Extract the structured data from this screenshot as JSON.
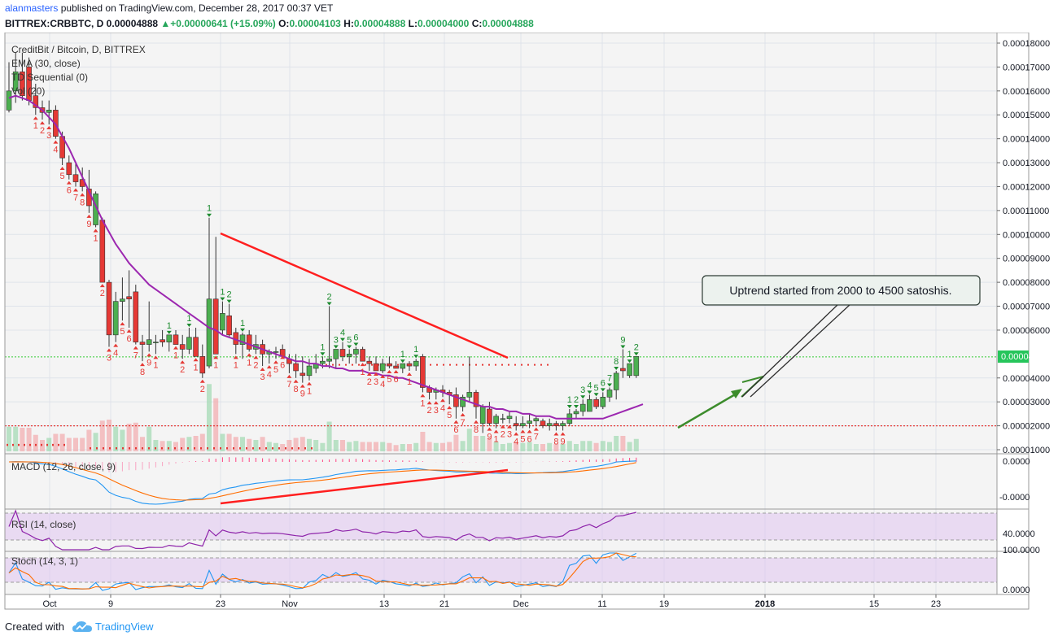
{
  "header": {
    "author": "alanmasters",
    "published_text": "published on TradingView.com, December 28, 2017 00:37 VET",
    "symbol": "BITTREX:CRBBTC, D",
    "last_price": "0.00004888",
    "change": "▲+0.00000641 (+15.09%)",
    "open_label": "O:",
    "open_value": "0.00004103",
    "high_label": "H:",
    "high_value": "0.00004888",
    "low_label": "L:",
    "low_value": "0.00004000",
    "close_label": "C:",
    "close_value": "0.00004888"
  },
  "legend": {
    "title": "CreditBit / Bitcoin, D, BITTREX",
    "ema": "EMA (30, close)",
    "td": "TD Sequential (0)",
    "vol": "Vol (20)"
  },
  "annotation": {
    "callout": "Uptrend started from 2000 to 4500 satoshis."
  },
  "price_axis": {
    "ticks": [
      "0.00018000",
      "0.00017000",
      "0.00016000",
      "0.00015000",
      "0.00014000",
      "0.00013000",
      "0.00012000",
      "0.00011000",
      "0.00010000",
      "0.00009000",
      "0.00008000",
      "0.00007000",
      "0.00006000",
      "0.00004888",
      "0.00004000",
      "0.00003000",
      "0.00002000",
      "0.00001000"
    ],
    "last_badge": "0.00004888"
  },
  "time_axis": {
    "labels": [
      "Oct",
      "9",
      "23",
      "Nov",
      "13",
      "21",
      "Dec",
      "11",
      "19",
      "2018",
      "15",
      "23"
    ]
  },
  "panels": {
    "macd_title": "MACD (12, 26, close, 9)",
    "macd_ticks": [
      "0.0000",
      "-0.0000"
    ],
    "rsi_title": "RSI (14, close)",
    "rsi_ticks": [
      "40.0000"
    ],
    "stoch_title": "Stoch (14, 3, 1)",
    "stoch_ticks": [
      "100.0000",
      "0.0000"
    ]
  },
  "footer": {
    "created_with": "Created with",
    "brand": "TradingView"
  },
  "colors": {
    "up": "#4caf50",
    "down": "#e53935",
    "ema": "#9c27b0",
    "trendline_red": "#ff1f1f",
    "arrow_green": "#3c8c2c",
    "last_price_badge": "#26c55b",
    "rsi_band": "#e1c8f0",
    "macd_blue": "#2196f3",
    "macd_orange": "#ff6d00"
  },
  "chart_data": {
    "type": "candlestick",
    "title": "CreditBit / Bitcoin, D, BITTREX",
    "x_labels": [
      "Oct",
      "9",
      "23",
      "Nov",
      "13",
      "21",
      "Dec",
      "11",
      "19",
      "2018",
      "15",
      "23"
    ],
    "ylim": [
      1e-05,
      0.00018
    ],
    "candles": [
      {
        "o": 0.000152,
        "h": 0.000172,
        "l": 0.000151,
        "c": 0.00016
      },
      {
        "o": 0.00016,
        "h": 0.000176,
        "l": 0.000155,
        "c": 0.000168
      },
      {
        "o": 0.000168,
        "h": 0.000176,
        "l": 0.000156,
        "c": 0.000158
      },
      {
        "o": 0.00017,
        "h": 0.000174,
        "l": 0.000154,
        "c": 0.000156
      },
      {
        "o": 0.000158,
        "h": 0.000163,
        "l": 0.00015,
        "c": 0.000153
      },
      {
        "o": 0.000153,
        "h": 0.000156,
        "l": 0.000148,
        "c": 0.000151
      },
      {
        "o": 0.000151,
        "h": 0.000156,
        "l": 0.000146,
        "c": 0.000152
      },
      {
        "o": 0.000152,
        "h": 0.000154,
        "l": 0.00014,
        "c": 0.000141
      },
      {
        "o": 0.000141,
        "h": 0.000143,
        "l": 0.000129,
        "c": 0.000132
      },
      {
        "o": 0.00013,
        "h": 0.000133,
        "l": 0.000123,
        "c": 0.000125
      },
      {
        "o": 0.000125,
        "h": 0.00013,
        "l": 0.00012,
        "c": 0.000122
      },
      {
        "o": 0.000123,
        "h": 0.000128,
        "l": 0.000118,
        "c": 0.00012
      },
      {
        "o": 0.000119,
        "h": 0.000127,
        "l": 0.000109,
        "c": 0.000112
      },
      {
        "o": 0.000104,
        "h": 0.000118,
        "l": 0.000103,
        "c": 0.000117
      },
      {
        "o": 0.000106,
        "h": 0.000107,
        "l": 8e-05,
        "c": 8e-05
      },
      {
        "o": 8e-05,
        "h": 8.1e-05,
        "l": 5.3e-05,
        "c": 5.8e-05
      },
      {
        "o": 5.8e-05,
        "h": 7.6e-05,
        "l": 5.5e-05,
        "c": 7.2e-05
      },
      {
        "o": 7.2e-05,
        "h": 8.2e-05,
        "l": 6.4e-05,
        "c": 7.3e-05
      },
      {
        "o": 7.4e-05,
        "h": 8.5e-05,
        "l": 6.1e-05,
        "c": 7.3e-05
      },
      {
        "o": 7.6e-05,
        "h": 7.9e-05,
        "l": 5.4e-05,
        "c": 5.5e-05
      },
      {
        "o": 5.5e-05,
        "h": 5.8e-05,
        "l": 4.7e-05,
        "c": 5.4e-05
      },
      {
        "o": 5.4e-05,
        "h": 7.2e-05,
        "l": 5.1e-05,
        "c": 5.6e-05
      },
      {
        "o": 5.5e-05,
        "h": 5.8e-05,
        "l": 5e-05,
        "c": 5.5e-05
      },
      {
        "o": 5.6e-05,
        "h": 6e-05,
        "l": 5.3e-05,
        "c": 5.5e-05
      },
      {
        "o": 5.5e-05,
        "h": 5.8e-05,
        "l": 5.1e-05,
        "c": 5.8e-05
      },
      {
        "o": 5.8e-05,
        "h": 6e-05,
        "l": 5.4e-05,
        "c": 5.4e-05
      },
      {
        "o": 5.4e-05,
        "h": 5.8e-05,
        "l": 4.8e-05,
        "c": 5.2e-05
      },
      {
        "o": 5.2e-05,
        "h": 6.1e-05,
        "l": 5e-05,
        "c": 5.7e-05
      },
      {
        "o": 5.7e-05,
        "h": 6.1e-05,
        "l": 4.9e-05,
        "c": 4.9e-05
      },
      {
        "o": 4.9e-05,
        "h": 5.4e-05,
        "l": 4e-05,
        "c": 4.2e-05
      },
      {
        "o": 4.5e-05,
        "h": 0.000107,
        "l": 4.4e-05,
        "c": 7.3e-05
      },
      {
        "o": 7.3e-05,
        "h": 9.9e-05,
        "l": 5e-05,
        "c": 5e-05
      },
      {
        "o": 6e-05,
        "h": 7.2e-05,
        "l": 5.8e-05,
        "c": 6.7e-05
      },
      {
        "o": 6.6e-05,
        "h": 7.1e-05,
        "l": 5.7e-05,
        "c": 5.8e-05
      },
      {
        "o": 5.9e-05,
        "h": 6.1e-05,
        "l": 5e-05,
        "c": 5.4e-05
      },
      {
        "o": 5.4e-05,
        "h": 5.9e-05,
        "l": 4.8e-05,
        "c": 5.8e-05
      },
      {
        "o": 5.8e-05,
        "h": 6e-05,
        "l": 5.1e-05,
        "c": 5.2e-05
      },
      {
        "o": 5.2e-05,
        "h": 5.8e-05,
        "l": 5e-05,
        "c": 5.4e-05
      },
      {
        "o": 5.4e-05,
        "h": 5.6e-05,
        "l": 4.5e-05,
        "c": 5e-05
      },
      {
        "o": 5e-05,
        "h": 5.2e-05,
        "l": 4.6e-05,
        "c": 5.1e-05
      },
      {
        "o": 5.1e-05,
        "h": 5.3e-05,
        "l": 4.8e-05,
        "c": 5.1e-05
      },
      {
        "o": 5.2e-05,
        "h": 5.4e-05,
        "l": 5e-05,
        "c": 4.9e-05
      },
      {
        "o": 4.8e-05,
        "h": 5e-05,
        "l": 4.2e-05,
        "c": 4.6e-05
      },
      {
        "o": 4.6e-05,
        "h": 5e-05,
        "l": 4e-05,
        "c": 4.3e-05
      },
      {
        "o": 4.2e-05,
        "h": 4.9e-05,
        "l": 3.8e-05,
        "c": 4.1e-05
      },
      {
        "o": 4.1e-05,
        "h": 4.8e-05,
        "l": 3.9e-05,
        "c": 4.5e-05
      },
      {
        "o": 4.4e-05,
        "h": 5e-05,
        "l": 4.2e-05,
        "c": 4.6e-05
      },
      {
        "o": 4.6e-05,
        "h": 4.9e-05,
        "l": 4.4e-05,
        "c": 4.7e-05
      },
      {
        "o": 4.7e-05,
        "h": 7e-05,
        "l": 4.4e-05,
        "c": 4.8e-05
      },
      {
        "o": 4.8e-05,
        "h": 5.2e-05,
        "l": 4.4e-05,
        "c": 5.2e-05
      },
      {
        "o": 5.2e-05,
        "h": 5.5e-05,
        "l": 4.7e-05,
        "c": 4.9e-05
      },
      {
        "o": 4.9e-05,
        "h": 5.2e-05,
        "l": 4.6e-05,
        "c": 5e-05
      },
      {
        "o": 5e-05,
        "h": 5.3e-05,
        "l": 4.6e-05,
        "c": 5.2e-05
      },
      {
        "o": 5.2e-05,
        "h": 5.3e-05,
        "l": 4.7e-05,
        "c": 4.7e-05
      },
      {
        "o": 4.7e-05,
        "h": 4.9e-05,
        "l": 4.3e-05,
        "c": 4.6e-05
      },
      {
        "o": 4.6e-05,
        "h": 4.9e-05,
        "l": 4.3e-05,
        "c": 4.3e-05
      },
      {
        "o": 4.3e-05,
        "h": 4.8e-05,
        "l": 4.2e-05,
        "c": 4.6e-05
      },
      {
        "o": 4.6e-05,
        "h": 4.9e-05,
        "l": 4.4e-05,
        "c": 4.5e-05
      },
      {
        "o": 4.5e-05,
        "h": 4.7e-05,
        "l": 4.4e-05,
        "c": 4.4e-05
      },
      {
        "o": 4.4e-05,
        "h": 4.6e-05,
        "l": 4.2e-05,
        "c": 4.6e-05
      },
      {
        "o": 4.6e-05,
        "h": 4.7e-05,
        "l": 4.3e-05,
        "c": 4.5e-05
      },
      {
        "o": 4.5e-05,
        "h": 4.8e-05,
        "l": 4.3e-05,
        "c": 4.7e-05
      },
      {
        "o": 4.9e-05,
        "h": 5e-05,
        "l": 3.4e-05,
        "c": 3.6e-05
      },
      {
        "o": 3.6e-05,
        "h": 3.7e-05,
        "l": 3.1e-05,
        "c": 3.4e-05
      },
      {
        "o": 3.4e-05,
        "h": 3.6e-05,
        "l": 3.1e-05,
        "c": 3.5e-05
      },
      {
        "o": 3.5e-05,
        "h": 3.7e-05,
        "l": 3.2e-05,
        "c": 3.4e-05
      },
      {
        "o": 3.4e-05,
        "h": 3.5e-05,
        "l": 2.9e-05,
        "c": 3.3e-05
      },
      {
        "o": 3.3e-05,
        "h": 3.6e-05,
        "l": 2.3e-05,
        "c": 2.8e-05
      },
      {
        "o": 2.8e-05,
        "h": 3.3e-05,
        "l": 2.6e-05,
        "c": 3.2e-05
      },
      {
        "o": 3.2e-05,
        "h": 4.9e-05,
        "l": 3e-05,
        "c": 3.4e-05
      },
      {
        "o": 3.4e-05,
        "h": 3.5e-05,
        "l": 2.3e-05,
        "c": 2.8e-05
      },
      {
        "o": 2.1e-05,
        "h": 2.9e-05,
        "l": 1.7e-05,
        "c": 2.8e-05
      },
      {
        "o": 2.7e-05,
        "h": 3e-05,
        "l": 2e-05,
        "c": 2.1e-05
      },
      {
        "o": 2.1e-05,
        "h": 2.5e-05,
        "l": 1.9e-05,
        "c": 2.4e-05
      },
      {
        "o": 2.3e-05,
        "h": 2.5e-05,
        "l": 2.1e-05,
        "c": 2.3e-05
      },
      {
        "o": 2.3e-05,
        "h": 2.6e-05,
        "l": 2.1e-05,
        "c": 2.4e-05
      },
      {
        "o": 2.1e-05,
        "h": 2.4e-05,
        "l": 1.8e-05,
        "c": 2e-05
      },
      {
        "o": 2e-05,
        "h": 2.4e-05,
        "l": 1.9e-05,
        "c": 2.1e-05
      },
      {
        "o": 2.1e-05,
        "h": 2.5e-05,
        "l": 1.9e-05,
        "c": 2.2e-05
      },
      {
        "o": 2.2e-05,
        "h": 2.4e-05,
        "l": 2e-05,
        "c": 2.3e-05
      },
      {
        "o": 2.2e-05,
        "h": 2.3e-05,
        "l": 1.9e-05,
        "c": 2e-05
      },
      {
        "o": 2e-05,
        "h": 2.3e-05,
        "l": 1.8e-05,
        "c": 2.1e-05
      },
      {
        "o": 2.1e-05,
        "h": 2.2e-05,
        "l": 1.8e-05,
        "c": 2e-05
      },
      {
        "o": 2e-05,
        "h": 2.2e-05,
        "l": 1.8e-05,
        "c": 2.1e-05
      },
      {
        "o": 2.1e-05,
        "h": 2.7e-05,
        "l": 2e-05,
        "c": 2.5e-05
      },
      {
        "o": 2.5e-05,
        "h": 2.7e-05,
        "l": 2.3e-05,
        "c": 2.6e-05
      },
      {
        "o": 2.6e-05,
        "h": 3.1e-05,
        "l": 2.4e-05,
        "c": 2.9e-05
      },
      {
        "o": 2.6e-05,
        "h": 3.3e-05,
        "l": 2.6e-05,
        "c": 3.1e-05
      },
      {
        "o": 3.1e-05,
        "h": 3.2e-05,
        "l": 2.7e-05,
        "c": 2.8e-05
      },
      {
        "o": 2.8e-05,
        "h": 3.4e-05,
        "l": 2.7e-05,
        "c": 3.2e-05
      },
      {
        "o": 3.2e-05,
        "h": 3.6e-05,
        "l": 3e-05,
        "c": 3.5e-05
      },
      {
        "o": 3.5e-05,
        "h": 4.3e-05,
        "l": 3.1e-05,
        "c": 4.2e-05
      },
      {
        "o": 4.4e-05,
        "h": 5.2e-05,
        "l": 4e-05,
        "c": 4.3e-05
      },
      {
        "o": 4.1e-05,
        "h": 4.6e-05,
        "l": 4e-05,
        "c": 4.6e-05
      },
      {
        "o": 4.1e-05,
        "h": 4.9e-05,
        "l": 4e-05,
        "c": 4.9e-05
      }
    ],
    "ema_30": [
      0.000157,
      0.000158,
      0.000157,
      0.000156,
      0.000154,
      0.000152,
      0.000149,
      0.000146,
      0.000141,
      0.000136,
      0.00013,
      0.000124,
      0.000118,
      0.000112,
      0.000106,
      0.000101,
      9.6e-05,
      9.2e-05,
      8.8e-05,
      8.5e-05,
      8.2e-05,
      7.9e-05,
      7.7e-05,
      7.5e-05,
      7.3e-05,
      7.1e-05,
      6.9e-05,
      6.7e-05,
      6.5e-05,
      6.3e-05,
      6.1e-05,
      6e-05,
      5.8e-05,
      5.7e-05,
      5.6e-05,
      5.5e-05,
      5.4e-05,
      5.3e-05,
      5.2e-05,
      5.1e-05,
      5e-05,
      4.9e-05,
      4.8e-05,
      4.7e-05,
      4.7e-05,
      4.6e-05,
      4.6e-05,
      4.5e-05,
      4.5e-05,
      4.4e-05,
      4.4e-05,
      4.3e-05,
      4.3e-05,
      4.3e-05,
      4.2e-05,
      4.2e-05,
      4.1e-05,
      4.1e-05,
      4e-05,
      4e-05,
      3.9e-05,
      3.8e-05,
      3.7e-05,
      3.6e-05,
      3.5e-05,
      3.4e-05,
      3.3e-05,
      3.2e-05,
      3.1e-05,
      3e-05,
      2.9e-05,
      2.8e-05,
      2.8e-05,
      2.7e-05,
      2.7e-05,
      2.6e-05,
      2.6e-05,
      2.5e-05,
      2.5e-05,
      2.4e-05,
      2.4e-05,
      2.4e-05,
      2.3e-05,
      2.3e-05,
      2.3e-05,
      2.3e-05,
      2.3e-05,
      2.3e-05,
      2.3e-05,
      2.3e-05,
      2.4e-05,
      2.5e-05,
      2.6e-05,
      2.7e-05,
      2.8e-05,
      2.9e-05
    ],
    "volume_axis_note": "",
    "horizontal_levels": [
      4.88e-05,
      2e-05,
      1.2e-05,
      1.06e-05
    ],
    "trendline_price": {
      "from": {
        "candle": 30,
        "y": 0.000101
      },
      "to": {
        "candle": 70,
        "y": 4.7e-05
      }
    },
    "trendline_macd": {
      "from": {
        "candle": 30
      },
      "to": {
        "candle": 69
      }
    },
    "td_labels_up_count": "green numbers 1-9 above candles",
    "td_labels_down_count": "red numbers 1-9 below candles",
    "rsi_levels": [
      70,
      30
    ],
    "stoch_levels": [
      80,
      20
    ]
  }
}
